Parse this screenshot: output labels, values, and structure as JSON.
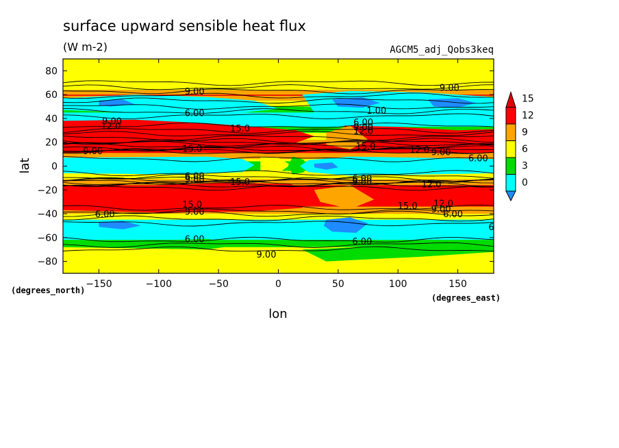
{
  "chart_data": {
    "type": "heatmap",
    "title": "surface upward sensible heat flux",
    "units": "(W m-2)",
    "run_label": "AGCM5_adj_Qobs3keq",
    "xlabel": "lon",
    "ylabel": "lat",
    "x_units": "(degrees_east)",
    "y_units": "(degrees_north)",
    "xlim": [
      -180,
      180
    ],
    "ylim": [
      -90,
      90
    ],
    "x_ticks": [
      -150,
      -100,
      -50,
      0,
      50,
      100,
      150
    ],
    "y_ticks": [
      80,
      60,
      40,
      20,
      0,
      -20,
      -40,
      -60,
      -80
    ],
    "x_tick_labels": [
      "−150",
      "−100",
      "−50",
      "0",
      "50",
      "100",
      "150"
    ],
    "y_tick_labels": [
      "80",
      "60",
      "40",
      "20",
      "0",
      "−20",
      "−40",
      "−60",
      "−80"
    ],
    "colorbar": {
      "levels": [
        0,
        3,
        6,
        9,
        12,
        15
      ],
      "labels": [
        "0",
        "3",
        "6",
        "9",
        "12",
        "15"
      ],
      "colors": [
        "#1e8cff",
        "#00ffff",
        "#00dc00",
        "#ffff00",
        "#ffa500",
        "#ff0000",
        "#e10000"
      ]
    },
    "contour_labels": [
      {
        "text": "9.00",
        "lon": -70,
        "lat": 63
      },
      {
        "text": "9.00",
        "lon": 143,
        "lat": 66
      },
      {
        "text": "6.00",
        "lon": -70,
        "lat": 45
      },
      {
        "text": "1.00",
        "lon": 82,
        "lat": 47
      },
      {
        "text": "9.00",
        "lon": -139,
        "lat": 38
      },
      {
        "text": "12.0",
        "lon": -140,
        "lat": 34
      },
      {
        "text": "15.0",
        "lon": -32,
        "lat": 32
      },
      {
        "text": "6.00",
        "lon": 71,
        "lat": 37
      },
      {
        "text": "9.00",
        "lon": 71,
        "lat": 33
      },
      {
        "text": "12.0",
        "lon": 71,
        "lat": 30
      },
      {
        "text": "15.0",
        "lon": 73,
        "lat": 17
      },
      {
        "text": "9.00",
        "lon": -155,
        "lat": 13
      },
      {
        "text": "15.0",
        "lon": -72,
        "lat": 15
      },
      {
        "text": "12.0",
        "lon": 118,
        "lat": 14
      },
      {
        "text": "9.00",
        "lon": 136,
        "lat": 12
      },
      {
        "text": "6.00",
        "lon": 167,
        "lat": 7
      },
      {
        "text": "6.00",
        "lon": -70,
        "lat": -8
      },
      {
        "text": "9.00",
        "lon": -70,
        "lat": -11
      },
      {
        "text": "15.0",
        "lon": -32,
        "lat": -13
      },
      {
        "text": "6.00",
        "lon": 70,
        "lat": -10
      },
      {
        "text": "9.00",
        "lon": 70,
        "lat": -13
      },
      {
        "text": "12.0",
        "lon": 128,
        "lat": -15
      },
      {
        "text": "15.0",
        "lon": 108,
        "lat": -33
      },
      {
        "text": "12.0",
        "lon": 138,
        "lat": -31
      },
      {
        "text": "9.00",
        "lon": 136,
        "lat": -36
      },
      {
        "text": "6.00",
        "lon": 146,
        "lat": -40
      },
      {
        "text": "15.0",
        "lon": -72,
        "lat": -32
      },
      {
        "text": "9.00",
        "lon": -70,
        "lat": -38
      },
      {
        "text": "6.00",
        "lon": -145,
        "lat": -40
      },
      {
        "text": "6.00",
        "lon": -70,
        "lat": -61
      },
      {
        "text": "6.00",
        "lon": 70,
        "lat": -63
      },
      {
        "text": "9.00",
        "lon": -10,
        "lat": -74
      },
      {
        "text": "6",
        "lon": 178,
        "lat": -51
      }
    ]
  }
}
